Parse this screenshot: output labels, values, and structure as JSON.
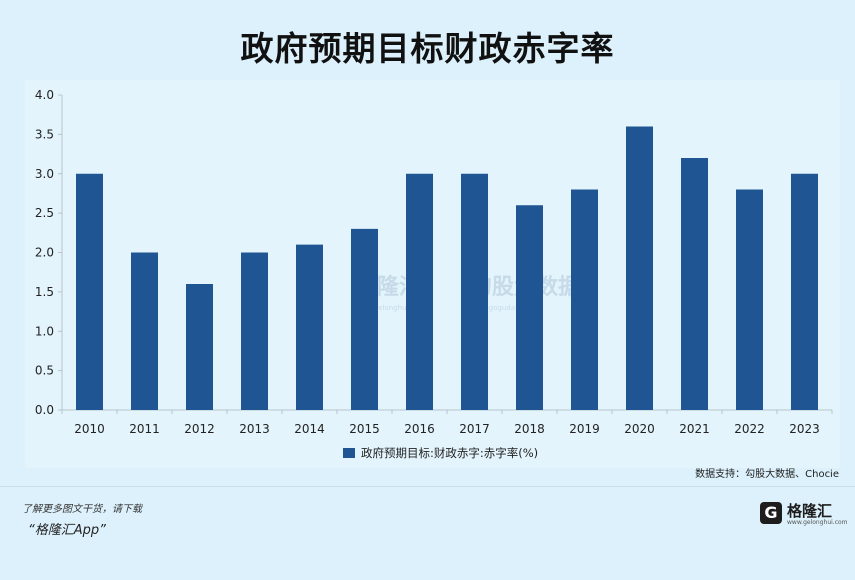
{
  "title": "政府预期目标财政赤字率",
  "source": "数据支持：勾股大数据、Chocie",
  "promo": {
    "line1": "了解更多图文干货，请下载",
    "line2": "“格隆汇App”"
  },
  "brand": {
    "name": "格隆汇",
    "url": "www.gelonghui.com",
    "icon": "G"
  },
  "watermark": {
    "left": "格隆汇",
    "right": "勾股大数据",
    "left_url": "www.gelonghui.com",
    "right_url": "www.gogudata.com"
  },
  "colors": {
    "background": "#dcf1fb",
    "bar": "#1f5592",
    "axis": "#b8c4cc"
  },
  "chart_data": {
    "type": "bar",
    "categories": [
      "2010",
      "2011",
      "2012",
      "2013",
      "2014",
      "2015",
      "2016",
      "2017",
      "2018",
      "2019",
      "2020",
      "2021",
      "2022",
      "2023"
    ],
    "series": [
      {
        "name": "政府预期目标:财政赤字:赤字率(%)",
        "values": [
          3.0,
          2.0,
          1.6,
          2.0,
          2.1,
          2.3,
          3.0,
          3.0,
          2.6,
          2.8,
          3.6,
          3.2,
          2.8,
          3.0
        ]
      }
    ],
    "yticks": [
      "0.0",
      "0.5",
      "1.0",
      "1.5",
      "2.0",
      "2.5",
      "3.0",
      "3.5",
      "4.0"
    ],
    "ylim": [
      0,
      4.0
    ],
    "grid": false,
    "legend": "bottom-center"
  }
}
